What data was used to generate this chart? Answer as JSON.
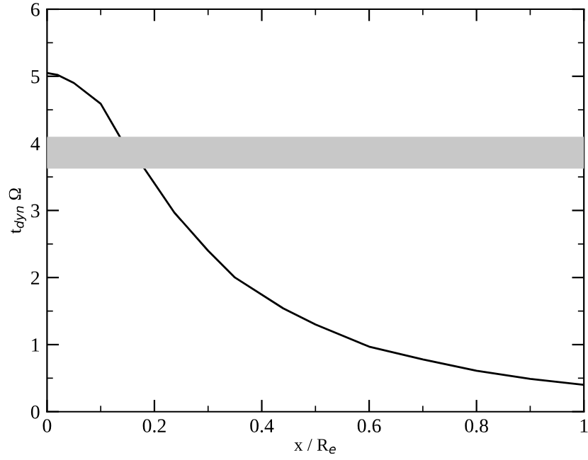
{
  "chart_data": {
    "type": "line",
    "xlabel": "x / R$_{e}$",
    "ylabel": "t$_{dyn}$ Ω",
    "x": [
      0,
      0.02,
      0.05,
      0.1,
      0.137,
      0.18,
      0.237,
      0.3,
      0.35,
      0.44,
      0.5,
      0.6,
      0.7,
      0.8,
      0.9,
      1.0
    ],
    "series": [
      {
        "color": "#000000",
        "values": [
          5.05,
          5.02,
          4.9,
          4.59,
          4.08,
          3.64,
          2.97,
          2.4,
          2.0,
          1.54,
          1.3,
          0.97,
          0.78,
          0.61,
          0.49,
          0.4
        ]
      }
    ],
    "bands": [
      {
        "axis": "y",
        "from": 3.64,
        "to": 4.08,
        "color": "#c8c8c8"
      }
    ],
    "xlim": [
      0,
      1
    ],
    "ylim": [
      0,
      6
    ],
    "xticks": [
      0,
      0.2,
      0.4,
      0.6,
      0.8,
      1
    ],
    "yticks": [
      0,
      1,
      2,
      3,
      4,
      5,
      6
    ],
    "grid": false,
    "legend": false,
    "marker": "none",
    "line_style": "solid"
  }
}
